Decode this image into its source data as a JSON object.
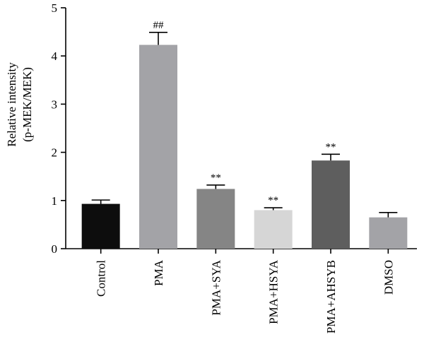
{
  "chart_data": {
    "type": "bar",
    "title": "",
    "xlabel": "",
    "ylabel_lines": [
      "Relative intensity",
      "(p-MEK/MEK)"
    ],
    "ylim": [
      0,
      5
    ],
    "yticks": [
      "0",
      "1",
      "2",
      "3",
      "4",
      "5"
    ],
    "grid": false,
    "categories": [
      "Control",
      "PMA",
      "PMA+SYA",
      "PMA+HSYA",
      "PMA+AHSYB",
      "DMSO"
    ],
    "values": [
      0.93,
      4.23,
      1.24,
      0.8,
      1.83,
      0.65
    ],
    "errors": [
      0.08,
      0.26,
      0.08,
      0.05,
      0.13,
      0.1
    ],
    "significance": [
      "",
      "##",
      "**",
      "**",
      "**",
      ""
    ],
    "colors": [
      "#0d0d0d",
      "#a3a3a7",
      "#858585",
      "#d6d6d6",
      "#5e5e5e",
      "#a3a3a7"
    ]
  }
}
